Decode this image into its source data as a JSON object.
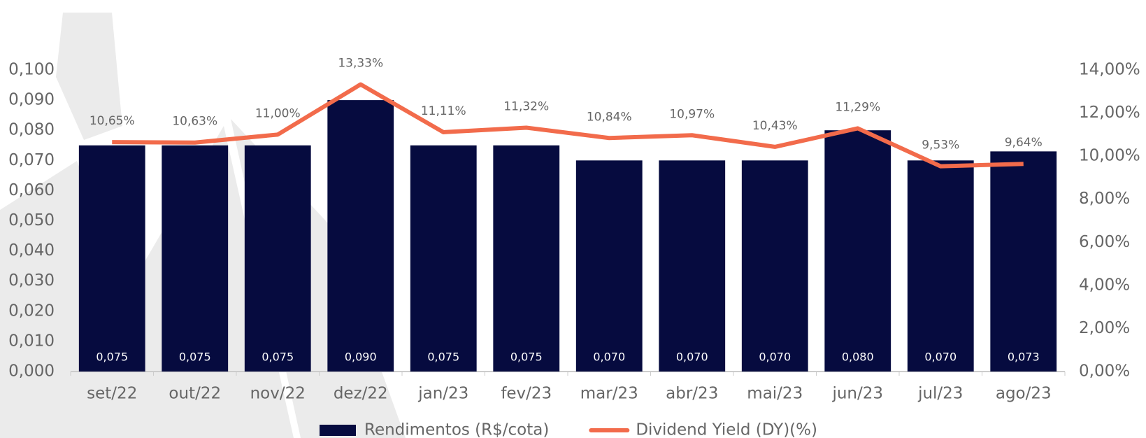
{
  "chart_data": {
    "type": "bar-line",
    "categories": [
      "set/22",
      "out/22",
      "nov/22",
      "dez/22",
      "jan/23",
      "fev/23",
      "mar/23",
      "abr/23",
      "mai/23",
      "jun/23",
      "jul/23",
      "ago/23"
    ],
    "series": [
      {
        "name": "Rendimentos (R$/cota)",
        "type": "bar",
        "color": "#060b3f",
        "values": [
          0.075,
          0.075,
          0.075,
          0.09,
          0.075,
          0.075,
          0.07,
          0.07,
          0.07,
          0.08,
          0.07,
          0.073
        ],
        "value_labels": [
          "0,075",
          "0,075",
          "0,075",
          "0,090",
          "0,075",
          "0,075",
          "0,070",
          "0,070",
          "0,070",
          "0,080",
          "0,070",
          "0,073"
        ]
      },
      {
        "name": "Dividend Yield (DY)(%)",
        "type": "line",
        "axis": "y2",
        "color": "#f26b4b",
        "values": [
          10.65,
          10.63,
          11.0,
          13.33,
          11.11,
          11.32,
          10.84,
          10.97,
          10.43,
          11.29,
          9.53,
          9.64
        ],
        "value_labels": [
          "10,65%",
          "10,63%",
          "11,00%",
          "13,33%",
          "11,11%",
          "11,32%",
          "10,84%",
          "10,97%",
          "10,43%",
          "11,29%",
          "9,53%",
          "9,64%"
        ]
      }
    ],
    "ylim": [
      0,
      0.1
    ],
    "yticks": [
      {
        "value": 0,
        "label": "0,000"
      },
      {
        "value": 0.01,
        "label": "0,010"
      },
      {
        "value": 0.02,
        "label": "0,020"
      },
      {
        "value": 0.03,
        "label": "0,030"
      },
      {
        "value": 0.04,
        "label": "0,040"
      },
      {
        "value": 0.05,
        "label": "0,050"
      },
      {
        "value": 0.06,
        "label": "0,060"
      },
      {
        "value": 0.07,
        "label": "0,070"
      },
      {
        "value": 0.08,
        "label": "0,080"
      },
      {
        "value": 0.09,
        "label": "0,090"
      },
      {
        "value": 0.1,
        "label": "0,100"
      }
    ],
    "y2lim": [
      0,
      14
    ],
    "y2ticks": [
      {
        "value": 0,
        "label": "0,00%"
      },
      {
        "value": 2,
        "label": "2,00%"
      },
      {
        "value": 4,
        "label": "4,00%"
      },
      {
        "value": 6,
        "label": "6,00%"
      },
      {
        "value": 8,
        "label": "8,00%"
      },
      {
        "value": 10,
        "label": "10,00%"
      },
      {
        "value": 12,
        "label": "12,00%"
      },
      {
        "value": 14,
        "label": "14,00%"
      }
    ],
    "grid": false
  }
}
